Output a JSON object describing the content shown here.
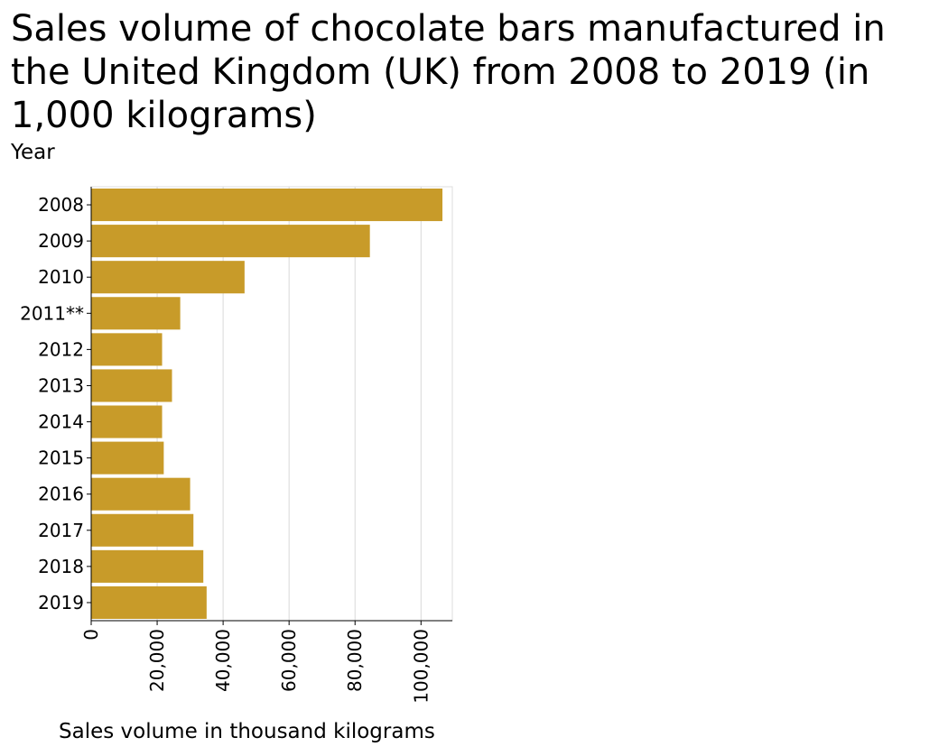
{
  "chart_data": {
    "type": "bar",
    "orientation": "horizontal",
    "title": "Sales volume of chocolate bars manufactured in the United Kingdom (UK) from 2008 to 2019 (in 1,000 kilograms)",
    "xlabel": "Sales volume in thousand kilograms",
    "ylabel": "Year",
    "categories": [
      "2008",
      "2009",
      "2010",
      "2011**",
      "2012",
      "2013",
      "2014",
      "2015",
      "2016",
      "2017",
      "2018",
      "2019"
    ],
    "values": [
      106500,
      84500,
      46500,
      27000,
      21500,
      24500,
      21500,
      22000,
      30000,
      31000,
      34000,
      35000
    ],
    "xlim": [
      0,
      109500
    ],
    "xticks": [
      0,
      20000,
      40000,
      60000,
      80000,
      100000
    ],
    "xtick_labels": [
      "0",
      "20,000",
      "40,000",
      "60,000",
      "80,000",
      "100,000"
    ],
    "grid": "vertical",
    "bar_color": "#c89b29"
  }
}
